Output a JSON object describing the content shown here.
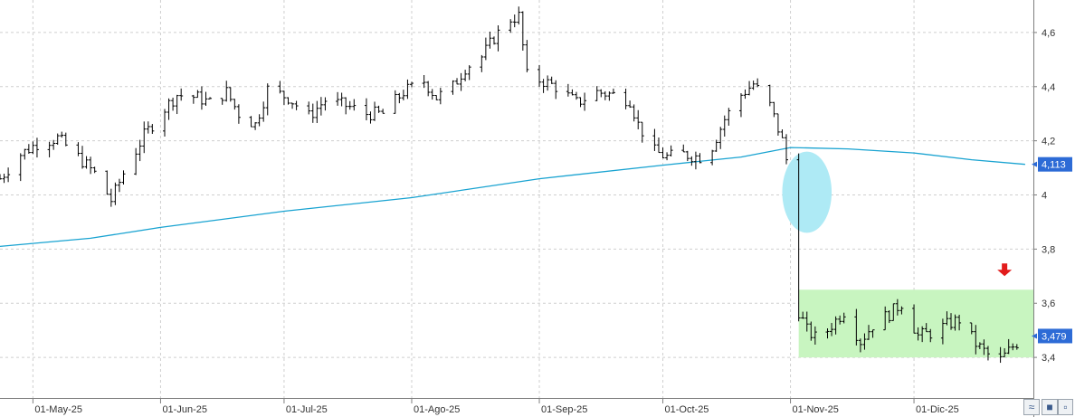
{
  "chart_data": {
    "type": "ohlc",
    "title": "",
    "xlabel": "",
    "ylabel": "",
    "ylim": [
      3.25,
      4.72
    ],
    "grid": true,
    "y_ticks": [
      "3,4",
      "3,6",
      "3,8",
      "4",
      "4,2",
      "4,4",
      "4,6"
    ],
    "y_tick_values": [
      3.4,
      3.6,
      3.8,
      4.0,
      4.2,
      4.4,
      4.6
    ],
    "x_ticks": [
      {
        "label": "01-May-25",
        "date": "2025-05-01"
      },
      {
        "label": "01-Jun-25",
        "date": "2025-06-01"
      },
      {
        "label": "01-Jul-25",
        "date": "2025-07-01"
      },
      {
        "label": "01-Ago-25",
        "date": "2025-08-01"
      },
      {
        "label": "01-Sep-25",
        "date": "2025-09-01"
      },
      {
        "label": "01-Oct-25",
        "date": "2025-10-01"
      },
      {
        "label": "01-Nov-25",
        "date": "2025-11-01"
      },
      {
        "label": "01-Dic-25",
        "date": "2025-12-01"
      }
    ],
    "x_range": [
      "2025-04-23",
      "2025-12-30"
    ],
    "price_path": [
      [
        "2025-04-23",
        4.06
      ],
      [
        "2025-04-28",
        4.15
      ],
      [
        "2025-05-02",
        4.19
      ],
      [
        "2025-05-07",
        4.21
      ],
      [
        "2025-05-12",
        4.14
      ],
      [
        "2025-05-16",
        4.08
      ],
      [
        "2025-05-20",
        3.98
      ],
      [
        "2025-05-23",
        4.08
      ],
      [
        "2025-05-28",
        4.22
      ],
      [
        "2025-06-02",
        4.32
      ],
      [
        "2025-06-05",
        4.37
      ],
      [
        "2025-06-10",
        4.36
      ],
      [
        "2025-06-13",
        4.34
      ],
      [
        "2025-06-17",
        4.38
      ],
      [
        "2025-06-20",
        4.3
      ],
      [
        "2025-06-24",
        4.26
      ],
      [
        "2025-06-27",
        4.39
      ],
      [
        "2025-07-02",
        4.36
      ],
      [
        "2025-07-07",
        4.29
      ],
      [
        "2025-07-11",
        4.35
      ],
      [
        "2025-07-16",
        4.33
      ],
      [
        "2025-07-21",
        4.3
      ],
      [
        "2025-07-25",
        4.3
      ],
      [
        "2025-07-30",
        4.38
      ],
      [
        "2025-08-04",
        4.42
      ],
      [
        "2025-08-07",
        4.36
      ],
      [
        "2025-08-11",
        4.4
      ],
      [
        "2025-08-14",
        4.47
      ],
      [
        "2025-08-18",
        4.51
      ],
      [
        "2025-08-21",
        4.58
      ],
      [
        "2025-08-25",
        4.65
      ],
      [
        "2025-08-27",
        4.66
      ],
      [
        "2025-08-29",
        4.44
      ],
      [
        "2025-09-02",
        4.42
      ],
      [
        "2025-09-05",
        4.4
      ],
      [
        "2025-09-10",
        4.34
      ],
      [
        "2025-09-15",
        4.38
      ],
      [
        "2025-09-19",
        4.37
      ],
      [
        "2025-09-23",
        4.35
      ],
      [
        "2025-09-25",
        4.26
      ],
      [
        "2025-09-29",
        4.16
      ],
      [
        "2025-10-02",
        4.14
      ],
      [
        "2025-10-06",
        4.15
      ],
      [
        "2025-10-10",
        4.14
      ],
      [
        "2025-10-13",
        4.18
      ],
      [
        "2025-10-16",
        4.28
      ],
      [
        "2025-10-20",
        4.37
      ],
      [
        "2025-10-23",
        4.41
      ],
      [
        "2025-10-27",
        4.33
      ],
      [
        "2025-10-30",
        4.2
      ],
      [
        "2025-10-31",
        4.13
      ],
      [
        "2025-11-02",
        3.87
      ],
      [
        "2025-11-03",
        3.57
      ],
      [
        "2025-11-05",
        3.5
      ],
      [
        "2025-11-08",
        3.46
      ],
      [
        "2025-11-11",
        3.52
      ],
      [
        "2025-11-14",
        3.57
      ],
      [
        "2025-11-18",
        3.46
      ],
      [
        "2025-11-21",
        3.52
      ],
      [
        "2025-11-25",
        3.56
      ],
      [
        "2025-11-28",
        3.6
      ],
      [
        "2025-12-02",
        3.48
      ],
      [
        "2025-12-05",
        3.49
      ],
      [
        "2025-12-09",
        3.52
      ],
      [
        "2025-12-12",
        3.54
      ],
      [
        "2025-12-16",
        3.45
      ],
      [
        "2025-12-19",
        3.41
      ],
      [
        "2025-12-22",
        3.39
      ],
      [
        "2025-12-25",
        3.44
      ],
      [
        "2025-12-28",
        3.48
      ]
    ],
    "moving_average": {
      "color": "#19a3d1",
      "points": [
        [
          "2025-04-23",
          3.81
        ],
        [
          "2025-05-15",
          3.84
        ],
        [
          "2025-06-01",
          3.88
        ],
        [
          "2025-07-01",
          3.94
        ],
        [
          "2025-08-01",
          3.99
        ],
        [
          "2025-09-01",
          4.06
        ],
        [
          "2025-10-01",
          4.11
        ],
        [
          "2025-10-20",
          4.14
        ],
        [
          "2025-11-01",
          4.175
        ],
        [
          "2025-11-15",
          4.17
        ],
        [
          "2025-12-01",
          4.155
        ],
        [
          "2025-12-15",
          4.13
        ],
        [
          "2025-12-28",
          4.113
        ]
      ]
    },
    "price_badges": [
      {
        "label": "4,113",
        "value": 4.113,
        "color": "#2d6bd6"
      },
      {
        "label": "3,479",
        "value": 3.479,
        "color": "#2d6bd6"
      }
    ],
    "annotations": {
      "gap_ellipse": {
        "color": "#aeeaf5",
        "x_start": "2025-10-30",
        "x_end": "2025-11-11",
        "y_low": 3.86,
        "y_high": 4.16
      },
      "range_box": {
        "color": "#c8f5c0",
        "x_start": "2025-11-03",
        "x_end": "2025-12-30",
        "y_low": 3.4,
        "y_high": 3.65
      },
      "down_arrow": {
        "color": "#e21b1b",
        "date": "2025-12-23",
        "value": 3.7
      }
    },
    "colors": {
      "bars": "#000000",
      "grid": "#cfcfcf",
      "axis": "#7f7f7f"
    }
  },
  "toolbar": {
    "btn1_icon": "≈",
    "btn2_icon": "■"
  }
}
